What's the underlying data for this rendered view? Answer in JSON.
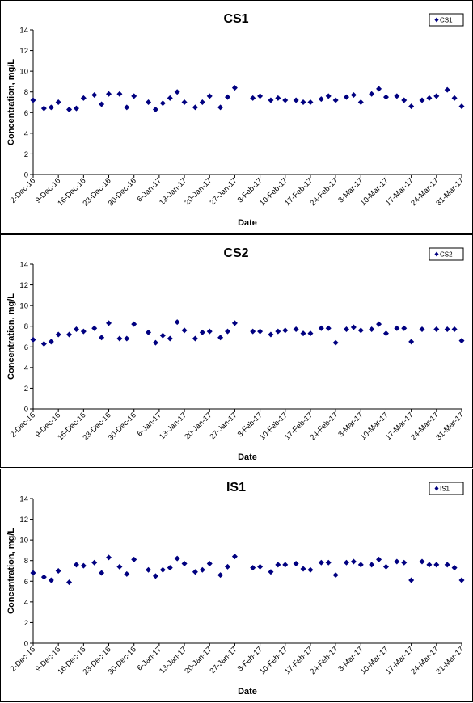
{
  "x_tick_labels": [
    "2-Dec-16",
    "9-Dec-16",
    "16-Dec-16",
    "23-Dec-16",
    "30-Dec-16",
    "6-Jan-17",
    "13-Jan-17",
    "20-Jan-17",
    "27-Jan-17",
    "3-Feb-17",
    "10-Feb-17",
    "17-Feb-17",
    "24-Feb-17",
    "3-Mar-17",
    "10-Mar-17",
    "17-Mar-17",
    "24-Mar-17",
    "31-Mar-17"
  ],
  "colors": {
    "marker": "#000080",
    "axis": "#000000",
    "frame": "#000000"
  },
  "chart_data": [
    {
      "type": "scatter",
      "title": "CS1",
      "xlabel": "Date",
      "ylabel": "Concentration, mg/L",
      "ylim": [
        0,
        14
      ],
      "yticks": [
        0,
        2,
        4,
        6,
        8,
        10,
        12,
        14
      ],
      "xlim": [
        "2016-12-02",
        "2017-03-31"
      ],
      "grid": false,
      "legend": "top-right",
      "series": [
        {
          "name": "CS1",
          "x": [
            "2016-12-02",
            "2016-12-05",
            "2016-12-07",
            "2016-12-09",
            "2016-12-12",
            "2016-12-14",
            "2016-12-16",
            "2016-12-19",
            "2016-12-21",
            "2016-12-23",
            "2016-12-26",
            "2016-12-28",
            "2016-12-30",
            "2017-01-03",
            "2017-01-05",
            "2017-01-07",
            "2017-01-09",
            "2017-01-11",
            "2017-01-13",
            "2017-01-16",
            "2017-01-18",
            "2017-01-20",
            "2017-01-23",
            "2017-01-25",
            "2017-01-27",
            "2017-02-01",
            "2017-02-03",
            "2017-02-06",
            "2017-02-08",
            "2017-02-10",
            "2017-02-13",
            "2017-02-15",
            "2017-02-17",
            "2017-02-20",
            "2017-02-22",
            "2017-02-24",
            "2017-02-27",
            "2017-03-01",
            "2017-03-03",
            "2017-03-06",
            "2017-03-08",
            "2017-03-10",
            "2017-03-13",
            "2017-03-15",
            "2017-03-17",
            "2017-03-20",
            "2017-03-22",
            "2017-03-24",
            "2017-03-27",
            "2017-03-29",
            "2017-03-31"
          ],
          "y": [
            7.2,
            6.4,
            6.5,
            7.0,
            6.3,
            6.4,
            7.4,
            7.7,
            6.8,
            7.8,
            7.8,
            6.5,
            7.6,
            7.0,
            6.3,
            6.9,
            7.4,
            8.0,
            7.0,
            6.5,
            7.0,
            7.6,
            6.5,
            7.5,
            8.4,
            7.4,
            7.6,
            7.2,
            7.4,
            7.2,
            7.2,
            7.0,
            7.0,
            7.3,
            7.6,
            7.2,
            7.5,
            7.7,
            7.0,
            7.8,
            8.3,
            7.5,
            7.6,
            7.2,
            6.6,
            7.2,
            7.4,
            7.6,
            8.2,
            7.4,
            6.6
          ]
        }
      ]
    },
    {
      "type": "scatter",
      "title": "CS2",
      "xlabel": "Date",
      "ylabel": "Concentration, mg/L",
      "ylim": [
        0,
        14
      ],
      "yticks": [
        0,
        2,
        4,
        6,
        8,
        10,
        12,
        14
      ],
      "xlim": [
        "2016-12-02",
        "2017-03-31"
      ],
      "grid": false,
      "legend": "top-right",
      "series": [
        {
          "name": "CS2",
          "x": [
            "2016-12-02",
            "2016-12-05",
            "2016-12-07",
            "2016-12-09",
            "2016-12-12",
            "2016-12-14",
            "2016-12-16",
            "2016-12-19",
            "2016-12-21",
            "2016-12-23",
            "2016-12-26",
            "2016-12-28",
            "2016-12-30",
            "2017-01-03",
            "2017-01-05",
            "2017-01-07",
            "2017-01-09",
            "2017-01-11",
            "2017-01-13",
            "2017-01-16",
            "2017-01-18",
            "2017-01-20",
            "2017-01-23",
            "2017-01-25",
            "2017-01-27",
            "2017-02-01",
            "2017-02-03",
            "2017-02-06",
            "2017-02-08",
            "2017-02-10",
            "2017-02-13",
            "2017-02-15",
            "2017-02-17",
            "2017-02-20",
            "2017-02-22",
            "2017-02-24",
            "2017-02-27",
            "2017-03-01",
            "2017-03-03",
            "2017-03-06",
            "2017-03-08",
            "2017-03-10",
            "2017-03-13",
            "2017-03-15",
            "2017-03-17",
            "2017-03-20",
            "2017-03-24",
            "2017-03-27",
            "2017-03-29",
            "2017-03-31"
          ],
          "y": [
            6.7,
            6.3,
            6.5,
            7.2,
            7.2,
            7.7,
            7.5,
            7.8,
            6.9,
            8.3,
            6.8,
            6.8,
            8.2,
            7.4,
            6.4,
            7.1,
            6.8,
            8.4,
            7.6,
            6.8,
            7.4,
            7.5,
            6.9,
            7.5,
            8.3,
            7.5,
            7.5,
            7.2,
            7.5,
            7.6,
            7.7,
            7.3,
            7.3,
            7.8,
            7.8,
            6.4,
            7.7,
            7.9,
            7.6,
            7.7,
            8.2,
            7.3,
            7.8,
            7.8,
            6.5,
            7.7,
            7.7,
            7.7,
            7.7,
            6.6
          ]
        }
      ]
    },
    {
      "type": "scatter",
      "title": "IS1",
      "xlabel": "Date",
      "ylabel": "Concentration, mg/L",
      "ylim": [
        0,
        14
      ],
      "yticks": [
        0,
        2,
        4,
        6,
        8,
        10,
        12,
        14
      ],
      "xlim": [
        "2016-12-02",
        "2017-03-31"
      ],
      "grid": false,
      "legend": "top-right",
      "series": [
        {
          "name": "IS1",
          "x": [
            "2016-12-02",
            "2016-12-05",
            "2016-12-07",
            "2016-12-09",
            "2016-12-12",
            "2016-12-14",
            "2016-12-16",
            "2016-12-19",
            "2016-12-21",
            "2016-12-23",
            "2016-12-26",
            "2016-12-28",
            "2016-12-30",
            "2017-01-03",
            "2017-01-05",
            "2017-01-07",
            "2017-01-09",
            "2017-01-11",
            "2017-01-13",
            "2017-01-16",
            "2017-01-18",
            "2017-01-20",
            "2017-01-23",
            "2017-01-25",
            "2017-01-27",
            "2017-02-01",
            "2017-02-03",
            "2017-02-06",
            "2017-02-08",
            "2017-02-10",
            "2017-02-13",
            "2017-02-15",
            "2017-02-17",
            "2017-02-20",
            "2017-02-22",
            "2017-02-24",
            "2017-02-27",
            "2017-03-01",
            "2017-03-03",
            "2017-03-06",
            "2017-03-08",
            "2017-03-10",
            "2017-03-13",
            "2017-03-15",
            "2017-03-17",
            "2017-03-20",
            "2017-03-22",
            "2017-03-24",
            "2017-03-27",
            "2017-03-29",
            "2017-03-31"
          ],
          "y": [
            6.8,
            6.4,
            6.1,
            7.0,
            5.9,
            7.6,
            7.5,
            7.8,
            6.8,
            8.3,
            7.4,
            6.7,
            8.1,
            7.1,
            6.5,
            7.1,
            7.3,
            8.2,
            7.7,
            6.9,
            7.1,
            7.7,
            6.6,
            7.4,
            8.4,
            7.3,
            7.4,
            6.9,
            7.6,
            7.6,
            7.7,
            7.2,
            7.1,
            7.8,
            7.8,
            6.6,
            7.8,
            7.9,
            7.6,
            7.6,
            8.1,
            7.4,
            7.9,
            7.8,
            6.1,
            7.9,
            7.6,
            7.6,
            7.6,
            7.3,
            6.1
          ]
        }
      ]
    }
  ]
}
